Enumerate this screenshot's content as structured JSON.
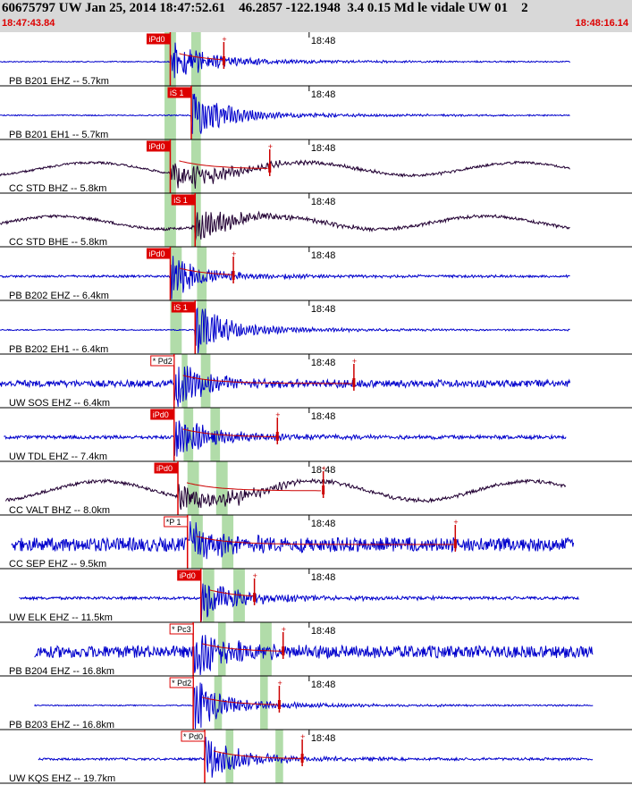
{
  "header": {
    "title": "60675797 UW Jan 25, 2014 18:47:52.61    46.2857 -122.1948  3.4 0.15 Md le vidale UW 01    2",
    "start_time": "18:47:43.84",
    "end_time": "18:48:16.14"
  },
  "colors": {
    "header_bg": "#d8d8d8",
    "pick_red": "#dd0000",
    "trace_blue": "#0000cc",
    "trace_dark": "#220033",
    "window_green": "#a8d8a0",
    "coda_red": "#cc0000"
  },
  "chart_data": {
    "type": "seismogram",
    "time_start": "18:47:43.84",
    "time_end": "18:48:16.14",
    "tick_label": "18:48",
    "tick_time_s": 16.16,
    "traces": [
      {
        "station": "PB B201 EHZ -- 5.7km",
        "pick": "iPd0",
        "pick_style": "filled",
        "pick_s": 8.9,
        "window_s": [
          8.6,
          9.2,
          10.0,
          10.5
        ],
        "start_s": 0.0,
        "end_s": 29.8,
        "amp": 0.5,
        "noise": 0.02,
        "swave": 0,
        "long_period": 0,
        "color": "#0000cc",
        "coda": true,
        "coda_s": 11.7
      },
      {
        "station": "PB B201 EH1 -- 5.7km",
        "pick": "iS 1",
        "pick_style": "filled",
        "pick_s": 10.0,
        "window_s": [
          8.6,
          9.2,
          10.0,
          10.5
        ],
        "start_s": 0.0,
        "end_s": 29.8,
        "amp": 0.55,
        "noise": 0.02,
        "swave": 0,
        "long_period": 0,
        "color": "#0000cc",
        "coda": false,
        "coda_s": 0
      },
      {
        "station": "CC STD BHZ -- 5.8km",
        "pick": "iPd0",
        "pick_style": "filled",
        "pick_s": 8.9,
        "window_s": [
          8.6,
          9.2,
          10.0,
          10.5
        ],
        "start_s": 0.0,
        "end_s": 29.8,
        "amp": 0.35,
        "noise": 0.04,
        "swave": 0.25,
        "long_period": 0.12,
        "color": "#220033",
        "coda": true,
        "coda_s": 14.1
      },
      {
        "station": "CC STD BHE -- 5.8km",
        "pick": "iS 1",
        "pick_style": "filled",
        "pick_s": 10.2,
        "window_s": [
          8.6,
          9.2,
          10.0,
          10.5
        ],
        "start_s": 0.0,
        "end_s": 29.8,
        "amp": 0.4,
        "noise": 0.05,
        "swave": 0.2,
        "long_period": 0.12,
        "color": "#220033",
        "coda": false,
        "coda_s": 0
      },
      {
        "station": "PB B202 EHZ -- 6.4km",
        "pick": "iPd0",
        "pick_style": "filled",
        "pick_s": 8.9,
        "window_s": [
          8.9,
          9.5,
          10.3,
          10.8
        ],
        "start_s": 0.0,
        "end_s": 29.8,
        "amp": 0.45,
        "noise": 0.04,
        "swave": 0,
        "long_period": 0,
        "color": "#0000cc",
        "coda": true,
        "coda_s": 12.2
      },
      {
        "station": "PB B202 EH1 -- 6.4km",
        "pick": "iS 1",
        "pick_style": "filled",
        "pick_s": 10.2,
        "window_s": [
          8.9,
          9.5,
          10.3,
          10.8
        ],
        "start_s": 0.0,
        "end_s": 29.8,
        "amp": 0.55,
        "noise": 0.02,
        "swave": 0,
        "long_period": 0,
        "color": "#0000cc",
        "coda": false,
        "coda_s": 0
      },
      {
        "station": "UW SOS EHZ -- 6.4km",
        "pick": "* Pd2",
        "pick_style": "outline",
        "pick_s": 9.1,
        "window_s": [
          9.5,
          9.8,
          10.5,
          11.0
        ],
        "start_s": 0.0,
        "end_s": 29.8,
        "amp": 0.5,
        "noise": 0.12,
        "swave": 0,
        "long_period": 0,
        "color": "#0000cc",
        "coda": true,
        "coda_s": 18.5
      },
      {
        "station": "UW TDL EHZ -- 7.4km",
        "pick": "iPd0",
        "pick_style": "filled",
        "pick_s": 9.1,
        "window_s": [
          9.6,
          10.1,
          11.0,
          11.5
        ],
        "start_s": 0.2,
        "end_s": 29.6,
        "amp": 0.55,
        "noise": 0.06,
        "swave": 0,
        "long_period": 0,
        "color": "#0000cc",
        "coda": true,
        "coda_s": 14.5
      },
      {
        "station": "CC VALT BHZ -- 8.0km",
        "pick": "iPd0",
        "pick_style": "filled",
        "pick_s": 9.3,
        "window_s": [
          9.8,
          10.4,
          11.3,
          11.9
        ],
        "start_s": 0.3,
        "end_s": 29.6,
        "amp": 0.3,
        "noise": 0.06,
        "swave": 0.25,
        "long_period": 0.18,
        "color": "#220033",
        "coda": true,
        "coda_s": 16.9
      },
      {
        "station": "CC SEP EHZ -- 9.5km",
        "pick": "*P 1",
        "pick_style": "outline",
        "pick_s": 9.8,
        "window_s": [
          10.0,
          10.6,
          11.6,
          12.2
        ],
        "start_s": 0.6,
        "end_s": 30.0,
        "amp": 0.45,
        "noise": 0.25,
        "swave": 0,
        "long_period": 0,
        "color": "#0000cc",
        "coda": true,
        "coda_s": 23.8
      },
      {
        "station": "UW ELK EHZ -- 11.5km",
        "pick": "iPd0",
        "pick_style": "filled",
        "pick_s": 10.5,
        "window_s": [
          10.6,
          11.2,
          12.2,
          12.8
        ],
        "start_s": 1.0,
        "end_s": 30.3,
        "amp": 0.5,
        "noise": 0.05,
        "swave": 0,
        "long_period": 0,
        "color": "#0000cc",
        "coda": true,
        "coda_s": 13.3
      },
      {
        "station": "PB B204 EHZ -- 16.8km",
        "pick": "* Pc3",
        "pick_style": "outline",
        "pick_s": 10.1,
        "window_s": [
          11.4,
          11.8,
          13.6,
          14.2
        ],
        "start_s": 1.8,
        "end_s": 31.0,
        "amp": 0.55,
        "noise": 0.22,
        "swave": 0,
        "long_period": 0,
        "color": "#0000cc",
        "coda": true,
        "coda_s": 14.8
      },
      {
        "station": "PB B203 EHZ -- 16.8km",
        "pick": "* Pd2",
        "pick_style": "outline",
        "pick_s": 10.1,
        "window_s": [
          11.2,
          11.6,
          13.6,
          14.0
        ],
        "start_s": 1.8,
        "end_s": 31.0,
        "amp": 0.55,
        "noise": 0.02,
        "swave": 0,
        "long_period": 0,
        "color": "#0000cc",
        "coda": true,
        "coda_s": 14.6
      },
      {
        "station": "UW KQS EHZ -- 19.7km",
        "pick": "* Pd0",
        "pick_style": "outline",
        "pick_s": 10.7,
        "window_s": [
          11.8,
          12.2,
          14.4,
          14.8
        ],
        "start_s": 2.0,
        "end_s": 31.0,
        "amp": 0.5,
        "noise": 0.04,
        "swave": 0,
        "long_period": 0,
        "color": "#0000cc",
        "coda": true,
        "coda_s": 15.8
      }
    ]
  }
}
